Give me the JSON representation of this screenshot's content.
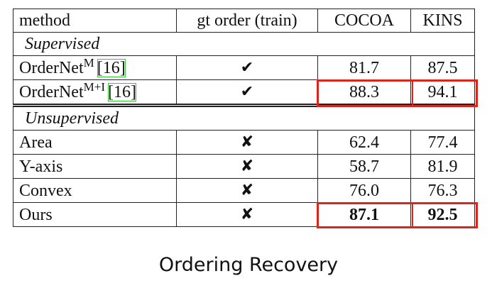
{
  "table": {
    "header": [
      "method",
      "gt order (train)",
      "COCOA",
      "KINS"
    ],
    "sections": [
      {
        "title": "Supervised",
        "rows": [
          {
            "method": {
              "name": "OrderNet",
              "sup": "M",
              "cite": "[16]"
            },
            "gt_order": "✔",
            "cocoa": "81.7",
            "kins": "87.5"
          },
          {
            "method": {
              "name": "OrderNet",
              "sup": "M+I",
              "cite": "[16]"
            },
            "gt_order": "✔",
            "cocoa": "88.3",
            "kins": "94.1",
            "highlight": true
          }
        ]
      },
      {
        "title": "Unsupervised",
        "rows": [
          {
            "method": {
              "name": "Area"
            },
            "gt_order": "✘",
            "cocoa": "62.4",
            "kins": "77.4"
          },
          {
            "method": {
              "name": "Y-axis"
            },
            "gt_order": "✘",
            "cocoa": "58.7",
            "kins": "81.9"
          },
          {
            "method": {
              "name": "Convex"
            },
            "gt_order": "✘",
            "cocoa": "76.0",
            "kins": "76.3"
          },
          {
            "method": {
              "name": "Ours"
            },
            "gt_order": "✘",
            "cocoa": "87.1",
            "kins": "92.5",
            "bold": true,
            "highlight": true
          }
        ]
      }
    ]
  },
  "caption": "Ordering Recovery"
}
